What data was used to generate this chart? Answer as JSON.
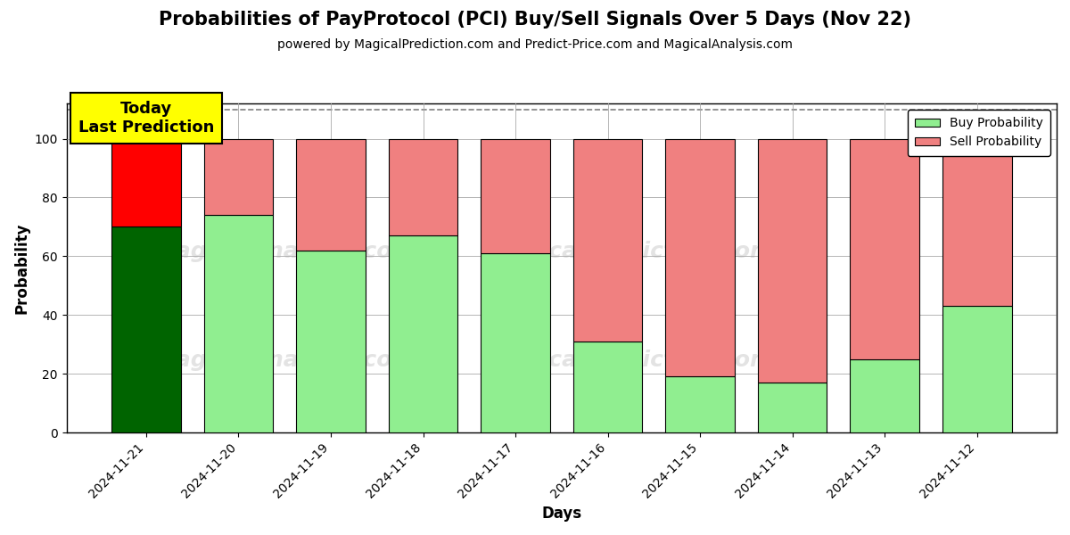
{
  "title": "Probabilities of PayProtocol (PCI) Buy/Sell Signals Over 5 Days (Nov 22)",
  "subtitle": "powered by MagicalPrediction.com and Predict-Price.com and MagicalAnalysis.com",
  "xlabel": "Days",
  "ylabel": "Probability",
  "categories": [
    "2024-11-21",
    "2024-11-20",
    "2024-11-19",
    "2024-11-18",
    "2024-11-17",
    "2024-11-16",
    "2024-11-15",
    "2024-11-14",
    "2024-11-13",
    "2024-11-12"
  ],
  "buy_values": [
    70,
    74,
    62,
    67,
    61,
    31,
    19,
    17,
    25,
    43
  ],
  "sell_values": [
    30,
    26,
    38,
    33,
    39,
    69,
    81,
    83,
    75,
    57
  ],
  "buy_colors": [
    "#006400",
    "#90EE90",
    "#90EE90",
    "#90EE90",
    "#90EE90",
    "#90EE90",
    "#90EE90",
    "#90EE90",
    "#90EE90",
    "#90EE90"
  ],
  "sell_colors": [
    "#FF0000",
    "#F08080",
    "#F08080",
    "#F08080",
    "#F08080",
    "#F08080",
    "#F08080",
    "#F08080",
    "#F08080",
    "#F08080"
  ],
  "today_annotation": "Today\nLast Prediction",
  "ylim": [
    0,
    112
  ],
  "yticks": [
    0,
    20,
    40,
    60,
    80,
    100
  ],
  "dashed_line_y": 110,
  "legend_buy_color": "#90EE90",
  "legend_sell_color": "#F08080",
  "legend_buy_label": "Buy Probability",
  "legend_sell_label": "Sell Probability",
  "background_color": "#ffffff",
  "grid_color": "#aaaaaa",
  "title_fontsize": 15,
  "subtitle_fontsize": 10,
  "axis_label_fontsize": 12,
  "tick_fontsize": 10,
  "bar_width": 0.75,
  "bar_edge_color": "#000000"
}
